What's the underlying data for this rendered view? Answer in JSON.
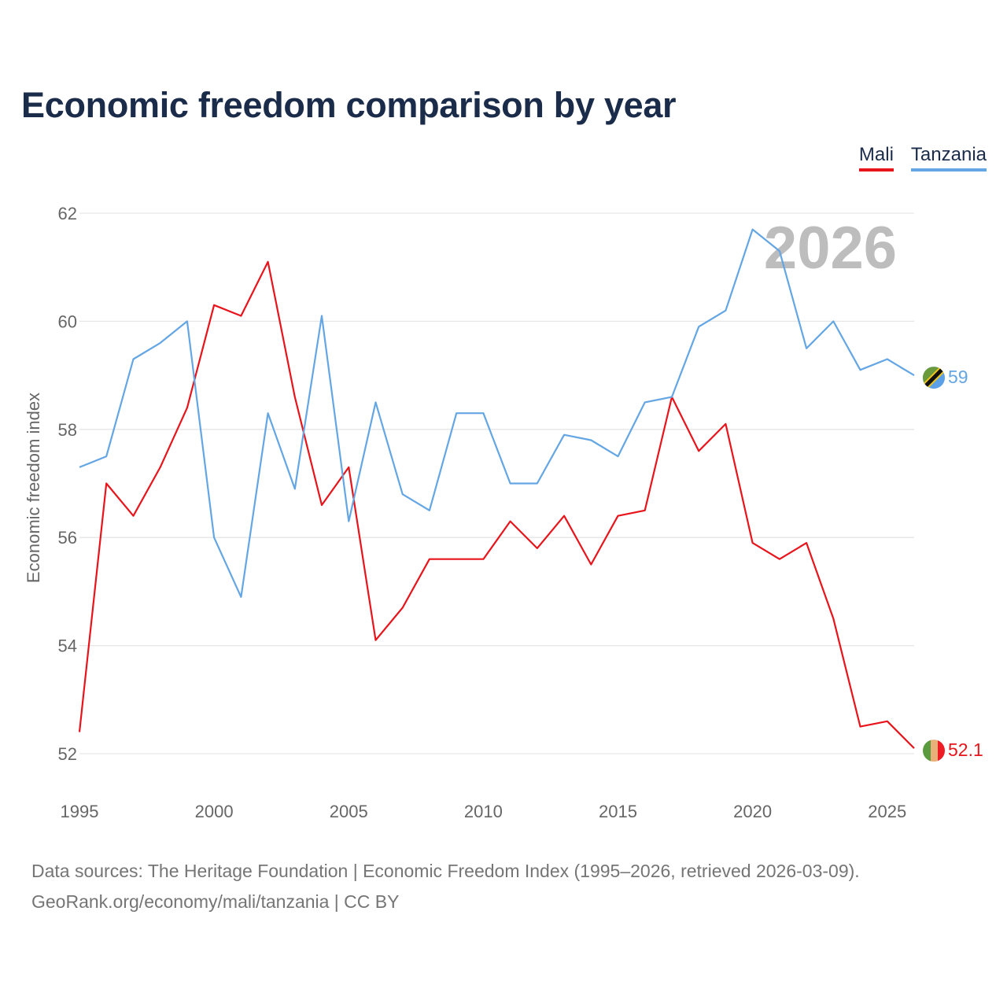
{
  "chart_data": {
    "type": "line",
    "title": "Economic freedom comparison by year",
    "ylabel": "Economic freedom index",
    "xlabel": "",
    "x": [
      1995,
      1996,
      1997,
      1998,
      1999,
      2000,
      2001,
      2002,
      2003,
      2004,
      2005,
      2006,
      2007,
      2008,
      2009,
      2010,
      2011,
      2012,
      2013,
      2014,
      2015,
      2016,
      2017,
      2018,
      2019,
      2020,
      2021,
      2022,
      2023,
      2024,
      2025,
      2026
    ],
    "xlim": [
      1995,
      2026
    ],
    "ylim": [
      52,
      62
    ],
    "xticks": [
      1995,
      2000,
      2005,
      2010,
      2015,
      2020,
      2025
    ],
    "yticks": [
      52,
      54,
      56,
      58,
      60,
      62
    ],
    "grid": true,
    "legend_position": "top-right",
    "current_year": "2026",
    "series": [
      {
        "name": "Mali",
        "color": "#e8141b",
        "end_label": "52.1",
        "values": [
          52.4,
          57.0,
          56.4,
          57.3,
          58.4,
          60.3,
          60.1,
          61.1,
          58.6,
          56.6,
          57.3,
          54.1,
          54.7,
          55.6,
          55.6,
          55.6,
          56.3,
          55.8,
          56.4,
          55.5,
          56.4,
          56.5,
          58.6,
          57.6,
          58.1,
          55.9,
          55.6,
          55.9,
          54.5,
          52.5,
          52.6,
          52.1
        ]
      },
      {
        "name": "Tanzania",
        "color": "#64a6e4",
        "end_label": "59",
        "values": [
          57.3,
          57.5,
          59.3,
          59.6,
          60.0,
          56.0,
          54.9,
          58.3,
          56.9,
          60.1,
          56.3,
          58.5,
          56.8,
          56.5,
          58.3,
          58.3,
          57.0,
          57.0,
          57.9,
          57.8,
          57.5,
          58.5,
          58.6,
          59.9,
          60.2,
          61.7,
          61.3,
          59.5,
          60.0,
          59.1,
          59.3,
          59.0
        ]
      }
    ],
    "flag_icons": {
      "Mali": "mali-flag-icon",
      "Tanzania": "tanzania-flag-icon"
    }
  },
  "footer": {
    "line1": "Data sources: The Heritage Foundation | Economic Freedom Index (1995–2026, retrieved 2026-03-09).",
    "line2": "GeoRank.org/economy/mali/tanzania | CC BY"
  }
}
